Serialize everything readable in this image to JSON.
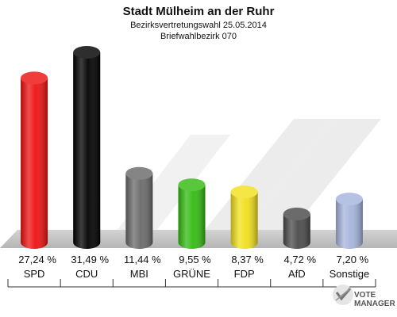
{
  "chart_data": {
    "type": "bar",
    "title": "Stadt Mülheim an der Ruhr",
    "subtitle": "Bezirksvertretungswahl 25.05.2014",
    "subtitle2": "Briefwahlbezirk 070",
    "categories": [
      "SPD",
      "CDU",
      "MBI",
      "GRÜNE",
      "FDP",
      "AfD",
      "Sonstige"
    ],
    "values": [
      27.24,
      31.49,
      11.44,
      9.55,
      8.37,
      4.72,
      7.2
    ],
    "value_labels": [
      "27,24 %",
      "31,49 %",
      "11,44 %",
      "9,55 %",
      "8,37 %",
      "4,72 %",
      "7,20 %"
    ],
    "colors": [
      "#ee1111",
      "#000000",
      "#6a6a6a",
      "#33bb11",
      "#f2e01c",
      "#4a4a4a",
      "#a6b4dd"
    ],
    "ylim": [
      0,
      31.49
    ]
  },
  "logo": {
    "line1": "VOTE",
    "line2": "MANAGER"
  }
}
